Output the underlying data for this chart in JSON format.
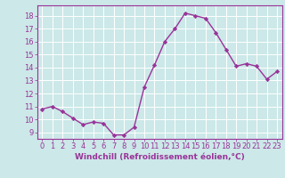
{
  "x": [
    0,
    1,
    2,
    3,
    4,
    5,
    6,
    7,
    8,
    9,
    10,
    11,
    12,
    13,
    14,
    15,
    16,
    17,
    18,
    19,
    20,
    21,
    22,
    23
  ],
  "y": [
    10.8,
    11.0,
    10.6,
    10.1,
    9.6,
    9.8,
    9.7,
    8.8,
    8.8,
    9.4,
    12.5,
    14.2,
    16.0,
    17.0,
    18.2,
    18.0,
    17.8,
    16.7,
    15.4,
    14.1,
    14.3,
    14.1,
    13.1,
    13.7
  ],
  "line_color": "#993399",
  "marker": "D",
  "marker_size": 2.2,
  "line_width": 1.0,
  "bg_color": "#cce8e8",
  "grid_color": "#ffffff",
  "xlabel": "Windchill (Refroidissement éolien,°C)",
  "xlabel_color": "#993399",
  "tick_color": "#993399",
  "ylim": [
    8.5,
    18.8
  ],
  "yticks": [
    9,
    10,
    11,
    12,
    13,
    14,
    15,
    16,
    17,
    18
  ],
  "xticks": [
    0,
    1,
    2,
    3,
    4,
    5,
    6,
    7,
    8,
    9,
    10,
    11,
    12,
    13,
    14,
    15,
    16,
    17,
    18,
    19,
    20,
    21,
    22,
    23
  ],
  "tick_fontsize": 6.0,
  "xlabel_fontsize": 6.5,
  "spine_color": "#993399"
}
